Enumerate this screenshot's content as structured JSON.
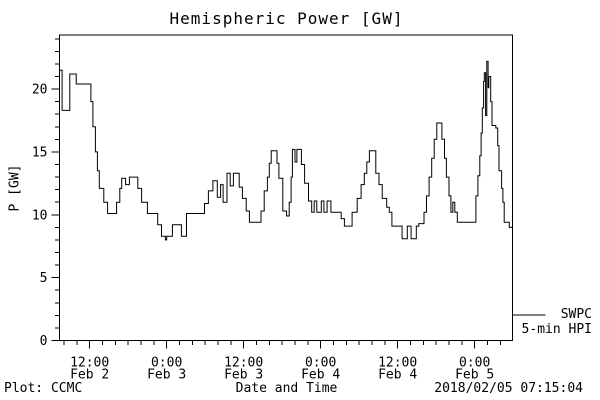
{
  "title": "Hemispheric Power [GW]",
  "y_axis": {
    "label": "P [GW]",
    "major_ticks": [
      0,
      5,
      10,
      15,
      20
    ],
    "minor_step": 1,
    "max": 24.3
  },
  "x_axis": {
    "label": "Date and Time",
    "major_ticks": [
      {
        "time": "12:00",
        "date": "Feb 2"
      },
      {
        "time": "0:00",
        "date": "Feb 3"
      },
      {
        "time": "12:00",
        "date": "Feb 3"
      },
      {
        "time": "0:00",
        "date": "Feb 4"
      },
      {
        "time": "12:00",
        "date": "Feb 4"
      },
      {
        "time": "0:00",
        "date": "Feb 5"
      }
    ],
    "first_major_hour": 4.7,
    "major_step_hours": 12,
    "first_minor_hour": 0.7,
    "minor_step_hours": 2,
    "range_hours": [
      0,
      70.6
    ]
  },
  "legend": {
    "label_line1": "SWPC",
    "label_line2": "5-min HPI"
  },
  "footer": {
    "credit": "Plot: CCMC",
    "timestamp": "2018/02/05 07:15:04"
  },
  "colors": {
    "line": "#000000",
    "background": "#ffffff",
    "text": "#000000"
  },
  "chart_data": {
    "type": "line",
    "title": "Hemispheric Power [GW]",
    "xlabel": "Date and Time",
    "ylabel": "P [GW]",
    "ylim": [
      0,
      24.3
    ],
    "grid": false,
    "legend_position": "outside-right-bottom",
    "x_axis_span": "2018 Feb 2 ~07:20 UT to Feb 5 ~06:00 UT, hours offset from plot start",
    "series": [
      {
        "name": "SWPC 5-min HPI",
        "step": true,
        "unit": "GW",
        "points": [
          [
            0,
            21.5
          ],
          [
            0.4,
            18.3
          ],
          [
            1.6,
            21.2
          ],
          [
            2.6,
            20.4
          ],
          [
            4.9,
            19.0
          ],
          [
            5.2,
            17.0
          ],
          [
            5.6,
            15.0
          ],
          [
            5.9,
            13.5
          ],
          [
            6.2,
            12.1
          ],
          [
            6.9,
            11.0
          ],
          [
            7.5,
            10.1
          ],
          [
            8.9,
            11.0
          ],
          [
            9.4,
            12.1
          ],
          [
            9.7,
            12.9
          ],
          [
            10.3,
            12.4
          ],
          [
            10.9,
            13.0
          ],
          [
            12.2,
            12.1
          ],
          [
            12.8,
            11.0
          ],
          [
            13.7,
            10.1
          ],
          [
            15.3,
            9.2
          ],
          [
            15.9,
            8.3
          ],
          [
            16.5,
            8.0
          ],
          [
            16.7,
            8.3
          ],
          [
            17.6,
            9.2
          ],
          [
            19.0,
            8.3
          ],
          [
            19.8,
            10.1
          ],
          [
            22.6,
            10.9
          ],
          [
            23.2,
            11.9
          ],
          [
            23.9,
            12.7
          ],
          [
            24.6,
            11.4
          ],
          [
            25.1,
            12.4
          ],
          [
            25.5,
            11.0
          ],
          [
            26.1,
            13.3
          ],
          [
            26.6,
            12.3
          ],
          [
            27.1,
            13.3
          ],
          [
            28.0,
            12.2
          ],
          [
            28.5,
            11.3
          ],
          [
            29.1,
            10.3
          ],
          [
            29.6,
            9.4
          ],
          [
            31.4,
            10.3
          ],
          [
            31.9,
            11.9
          ],
          [
            32.4,
            13.0
          ],
          [
            32.7,
            14.1
          ],
          [
            33.0,
            15.1
          ],
          [
            33.9,
            14.1
          ],
          [
            34.2,
            12.9
          ],
          [
            34.8,
            10.3
          ],
          [
            35.4,
            9.9
          ],
          [
            35.8,
            11.0
          ],
          [
            36.1,
            13.0
          ],
          [
            36.3,
            15.2
          ],
          [
            36.7,
            14.2
          ],
          [
            37.0,
            15.2
          ],
          [
            37.7,
            14.0
          ],
          [
            38.2,
            12.5
          ],
          [
            38.8,
            11.1
          ],
          [
            39.3,
            10.2
          ],
          [
            39.7,
            11.1
          ],
          [
            40.1,
            10.2
          ],
          [
            40.8,
            11.1
          ],
          [
            41.2,
            10.2
          ],
          [
            41.7,
            11.1
          ],
          [
            42.3,
            10.2
          ],
          [
            43.9,
            9.7
          ],
          [
            44.4,
            9.1
          ],
          [
            45.6,
            10.2
          ],
          [
            46.4,
            11.3
          ],
          [
            47.0,
            12.4
          ],
          [
            47.5,
            13.3
          ],
          [
            47.9,
            14.2
          ],
          [
            48.3,
            15.1
          ],
          [
            49.3,
            13.3
          ],
          [
            49.8,
            12.4
          ],
          [
            50.3,
            11.3
          ],
          [
            51.0,
            10.6
          ],
          [
            51.4,
            10.2
          ],
          [
            51.8,
            9.1
          ],
          [
            53.4,
            8.1
          ],
          [
            54.2,
            9.1
          ],
          [
            54.8,
            8.1
          ],
          [
            55.6,
            9.1
          ],
          [
            56.0,
            9.3
          ],
          [
            56.8,
            10.2
          ],
          [
            57.2,
            11.5
          ],
          [
            57.6,
            13.0
          ],
          [
            58.0,
            14.5
          ],
          [
            58.4,
            16.0
          ],
          [
            58.8,
            17.3
          ],
          [
            59.6,
            16.0
          ],
          [
            60.0,
            14.5
          ],
          [
            60.3,
            13.0
          ],
          [
            60.7,
            11.5
          ],
          [
            61.0,
            10.2
          ],
          [
            61.3,
            11.0
          ],
          [
            61.6,
            10.2
          ],
          [
            62.0,
            9.4
          ],
          [
            64.9,
            11.5
          ],
          [
            65.2,
            13.1
          ],
          [
            65.5,
            14.7
          ],
          [
            65.7,
            16.5
          ],
          [
            65.9,
            18.5
          ],
          [
            66.1,
            20.6
          ],
          [
            66.2,
            21.3
          ],
          [
            66.4,
            17.9
          ],
          [
            66.6,
            22.2
          ],
          [
            66.8,
            20.1
          ],
          [
            66.9,
            21.0
          ],
          [
            67.2,
            19.0
          ],
          [
            67.4,
            17.1
          ],
          [
            68.0,
            16.9
          ],
          [
            68.3,
            15.5
          ],
          [
            68.5,
            13.5
          ],
          [
            68.9,
            12.1
          ],
          [
            69.1,
            11.0
          ],
          [
            69.3,
            9.4
          ],
          [
            70.1,
            9.0
          ]
        ]
      }
    ]
  }
}
